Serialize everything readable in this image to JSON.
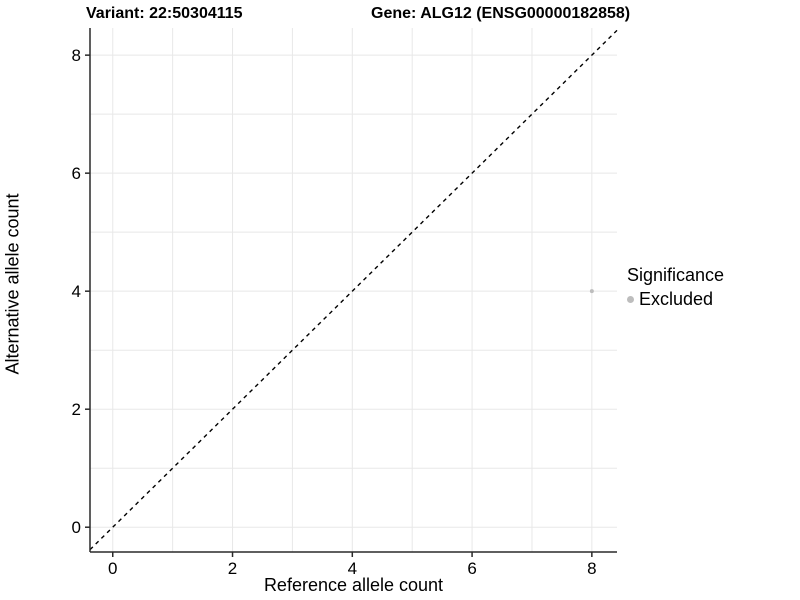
{
  "header": {
    "variant_title": "Variant: 22:50304115",
    "gene_title": "Gene: ALG12 (ENSG00000182858)"
  },
  "chart_data": {
    "type": "scatter",
    "title_left": "Variant: 22:50304115",
    "title_right": "Gene: ALG12 (ENSG00000182858)",
    "xlabel": "Reference allele count",
    "ylabel": "Alternative allele count",
    "xlim": [
      -0.38,
      8.42
    ],
    "ylim": [
      -0.42,
      8.46
    ],
    "x_ticks": [
      0,
      2,
      4,
      6,
      8
    ],
    "y_ticks": [
      0,
      2,
      4,
      6,
      8
    ],
    "grid_lines": [
      0,
      1,
      2,
      3,
      4,
      5,
      6,
      7,
      8
    ],
    "grid": true,
    "identity_line": {
      "style": "dashed",
      "slope": 1,
      "intercept": 0,
      "color": "#000000"
    },
    "points": [
      {
        "x": 8,
        "y": 4,
        "series": "Excluded"
      }
    ],
    "point_radius": 2,
    "point_color": "#bdbdbd",
    "legend": {
      "position": "right",
      "title": "Significance",
      "items": [
        {
          "label": "Excluded",
          "color": "#bdbdbd"
        }
      ]
    },
    "colors": {
      "grid": "#e8e8e8",
      "axis": "#2a2a2a",
      "tick_text": "#000000"
    }
  }
}
